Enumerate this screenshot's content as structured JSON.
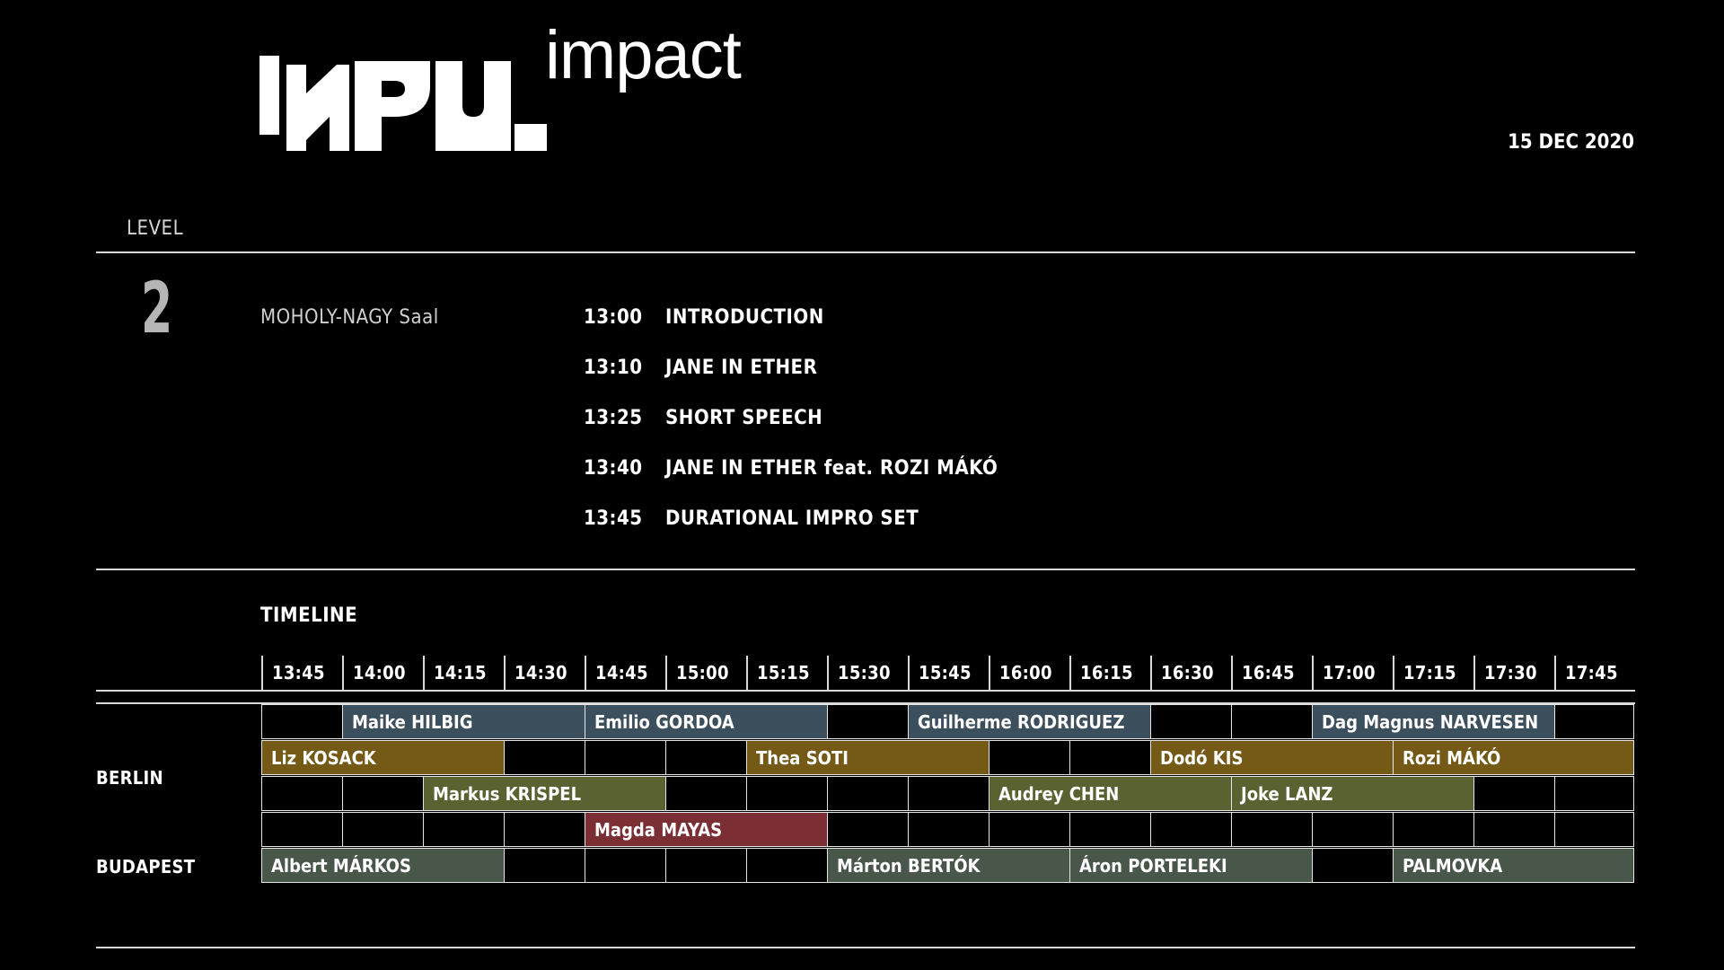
{
  "header": {
    "logo_text": "INPUT",
    "logo_word": "impact",
    "date": "15 DEC 2020"
  },
  "level": {
    "label": "LEVEL",
    "number": "2",
    "room": "MOHOLY-NAGY Saal"
  },
  "program": [
    {
      "time": "13:00",
      "title": "INTRODUCTION"
    },
    {
      "time": "13:10",
      "title": "JANE IN ETHER"
    },
    {
      "time": "13:25",
      "title": "SHORT SPEECH"
    },
    {
      "time": "13:40",
      "title": "JANE IN ETHER feat. ROZI MÁKÓ"
    },
    {
      "time": "13:45",
      "title": "DURATIONAL IMPRO SET"
    }
  ],
  "timeline": {
    "label": "TIMELINE",
    "ticks": [
      "13:45",
      "14:00",
      "14:15",
      "14:30",
      "14:45",
      "15:00",
      "15:15",
      "15:30",
      "15:45",
      "16:00",
      "16:15",
      "16:30",
      "16:45",
      "17:00",
      "17:15",
      "17:30",
      "17:45"
    ],
    "cities": [
      "BERLIN",
      "BUDAPEST"
    ],
    "colors": {
      "slate": "#3c4f5d",
      "ochre": "#755a17",
      "olive": "#5a6232",
      "maroon": "#7b2f35",
      "gray_green": "#48574a"
    },
    "rows": [
      {
        "city": "BERLIN",
        "blocks": [
          {
            "name": "Maike HILBIG",
            "start": "14:00",
            "end": "14:45",
            "color": "slate"
          },
          {
            "name": "Emilio GORDOA",
            "start": "14:45",
            "end": "15:30",
            "color": "slate"
          },
          {
            "name": "Guilherme RODRIGUEZ",
            "start": "15:45",
            "end": "16:30",
            "color": "slate"
          },
          {
            "name": "Dag Magnus NARVESEN",
            "start": "17:00",
            "end": "17:45",
            "color": "slate"
          }
        ]
      },
      {
        "city": "BERLIN",
        "blocks": [
          {
            "name": "Liz KOSACK",
            "start": "13:45",
            "end": "14:30",
            "color": "ochre"
          },
          {
            "name": "Thea SOTI",
            "start": "15:15",
            "end": "16:00",
            "color": "ochre"
          },
          {
            "name": "Dodó KIS",
            "start": "16:30",
            "end": "17:15",
            "color": "ochre"
          },
          {
            "name": "Rozi MÁKÓ",
            "start": "17:15",
            "end": "18:00",
            "color": "ochre"
          }
        ]
      },
      {
        "city": "BERLIN",
        "blocks": [
          {
            "name": "Markus KRISPEL",
            "start": "14:15",
            "end": "15:00",
            "color": "olive"
          },
          {
            "name": "Audrey CHEN",
            "start": "16:00",
            "end": "16:45",
            "color": "olive"
          },
          {
            "name": "Joke LANZ",
            "start": "16:45",
            "end": "17:30",
            "color": "olive"
          }
        ]
      },
      {
        "city": "BERLIN",
        "blocks": [
          {
            "name": "Magda MAYAS",
            "start": "14:45",
            "end": "15:30",
            "color": "maroon"
          }
        ]
      },
      {
        "city": "BUDAPEST",
        "blocks": [
          {
            "name": "Albert MÁRKOS",
            "start": "13:45",
            "end": "14:30",
            "color": "gray_green"
          },
          {
            "name": "Márton BERTÓK",
            "start": "15:30",
            "end": "16:15",
            "color": "gray_green"
          },
          {
            "name": "Áron PORTELEKI",
            "start": "16:15",
            "end": "17:00",
            "color": "gray_green"
          },
          {
            "name": "PALMOVKA",
            "start": "17:15",
            "end": "18:00",
            "color": "gray_green"
          }
        ]
      }
    ]
  }
}
